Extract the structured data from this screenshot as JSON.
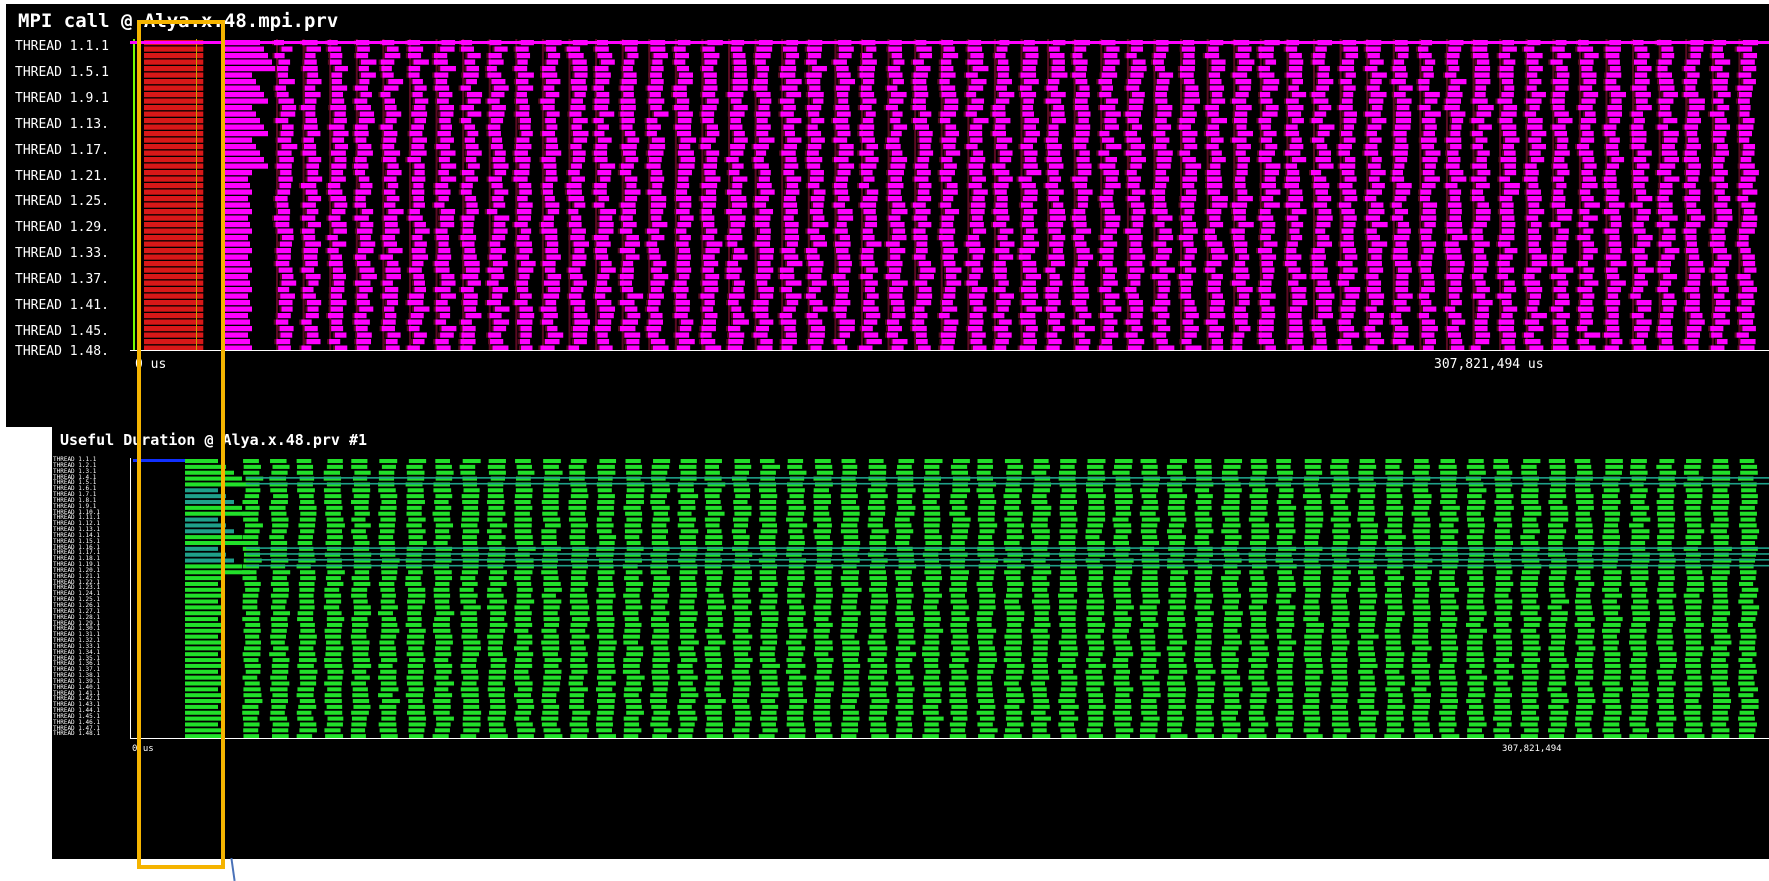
{
  "top_panel": {
    "title": "MPI call @ Alya.x.48.mpi.prv",
    "row_labels": [
      "THREAD 1.1.1",
      "THREAD 1.5.1",
      "THREAD 1.9.1",
      "THREAD 1.13.",
      "THREAD 1.17.",
      "THREAD 1.21.",
      "THREAD 1.25.",
      "THREAD 1.29.",
      "THREAD 1.33.",
      "THREAD 1.37.",
      "THREAD 1.41.",
      "THREAD 1.45.",
      "THREAD 1.48."
    ],
    "time_start": "0 us",
    "time_end": "307,821,494 us"
  },
  "bottom_panel": {
    "title": "Useful Duration @ Alya.x.48.prv #1",
    "row_labels": [
      "THREAD 1.1.1",
      "THREAD 1.2.1",
      "THREAD 1.3.1",
      "THREAD 1.4.1",
      "THREAD 1.5.1",
      "THREAD 1.6.1",
      "THREAD 1.7.1",
      "THREAD 1.8.1",
      "THREAD 1.9.1",
      "THREAD 1.10.1",
      "THREAD 1.11.1",
      "THREAD 1.12.1",
      "THREAD 1.13.1",
      "THREAD 1.14.1",
      "THREAD 1.15.1",
      "THREAD 1.16.1",
      "THREAD 1.17.1",
      "THREAD 1.18.1",
      "THREAD 1.19.1",
      "THREAD 1.20.1",
      "THREAD 1.21.1",
      "THREAD 1.22.1",
      "THREAD 1.23.1",
      "THREAD 1.24.1",
      "THREAD 1.25.1",
      "THREAD 1.26.1",
      "THREAD 1.27.1",
      "THREAD 1.28.1",
      "THREAD 1.29.1",
      "THREAD 1.30.1",
      "THREAD 1.31.1",
      "THREAD 1.32.1",
      "THREAD 1.33.1",
      "THREAD 1.34.1",
      "THREAD 1.35.1",
      "THREAD 1.36.1",
      "THREAD 1.37.1",
      "THREAD 1.38.1",
      "THREAD 1.39.1",
      "THREAD 1.40.1",
      "THREAD 1.41.1",
      "THREAD 1.42.1",
      "THREAD 1.43.1",
      "THREAD 1.44.1",
      "THREAD 1.45.1",
      "THREAD 1.46.1",
      "THREAD 1.47.1",
      "THREAD 1.48.1"
    ],
    "time_start": "0 us",
    "time_end": "307,821,494"
  },
  "chart_data": [
    {
      "type": "heatmap",
      "title": "MPI call @ Alya.x.48.mpi.prv",
      "rows": 48,
      "x_range_us": [
        0,
        307821494
      ],
      "initial_phase_fraction": 0.038,
      "iterations": 56,
      "colors": {
        "init_call": "#d81818",
        "mpi_call": "#ff00ff",
        "wait": "#5a0a22",
        "marker": "#7cfc00",
        "background": "#000000"
      }
    },
    {
      "type": "heatmap",
      "title": "Useful Duration @ Alya.x.48.prv #1",
      "rows": 48,
      "x_range_us": [
        0,
        307821494
      ],
      "iterations": 56,
      "colors": {
        "useful": "#22e02a",
        "long_useful": "#1fa08a",
        "start": "#1030ff",
        "background": "#000000"
      }
    }
  ]
}
